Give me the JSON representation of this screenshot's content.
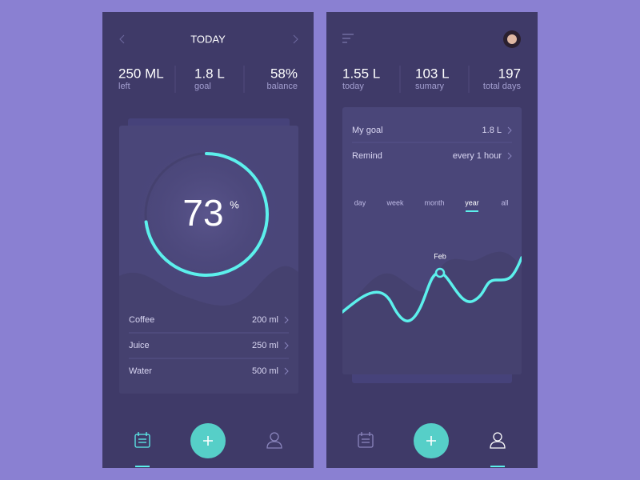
{
  "left_screen": {
    "header": {
      "title": "TODAY"
    },
    "stats": [
      {
        "value": "250 ML",
        "label": "left"
      },
      {
        "value": "1.8 L",
        "label": "goal"
      },
      {
        "value": "58%",
        "label": "balance"
      }
    ],
    "progress": {
      "value": 73,
      "unit": "%"
    },
    "drinks": [
      {
        "name": "Coffee",
        "amount": "200 ml"
      },
      {
        "name": "Juice",
        "amount": "250 ml"
      },
      {
        "name": "Water",
        "amount": "500 ml"
      }
    ]
  },
  "right_screen": {
    "stats": [
      {
        "value": "1.55 L",
        "label": "today"
      },
      {
        "value": "103 L",
        "label": "sumary"
      },
      {
        "value": "197",
        "label": "total days"
      }
    ],
    "settings": [
      {
        "label": "My goal",
        "value": "1.8 L"
      },
      {
        "label": "Remind",
        "value": "every 1 hour"
      }
    ],
    "tabs": [
      "day",
      "week",
      "month",
      "year",
      "all"
    ],
    "active_tab": 3,
    "chart_label": "Feb"
  }
}
